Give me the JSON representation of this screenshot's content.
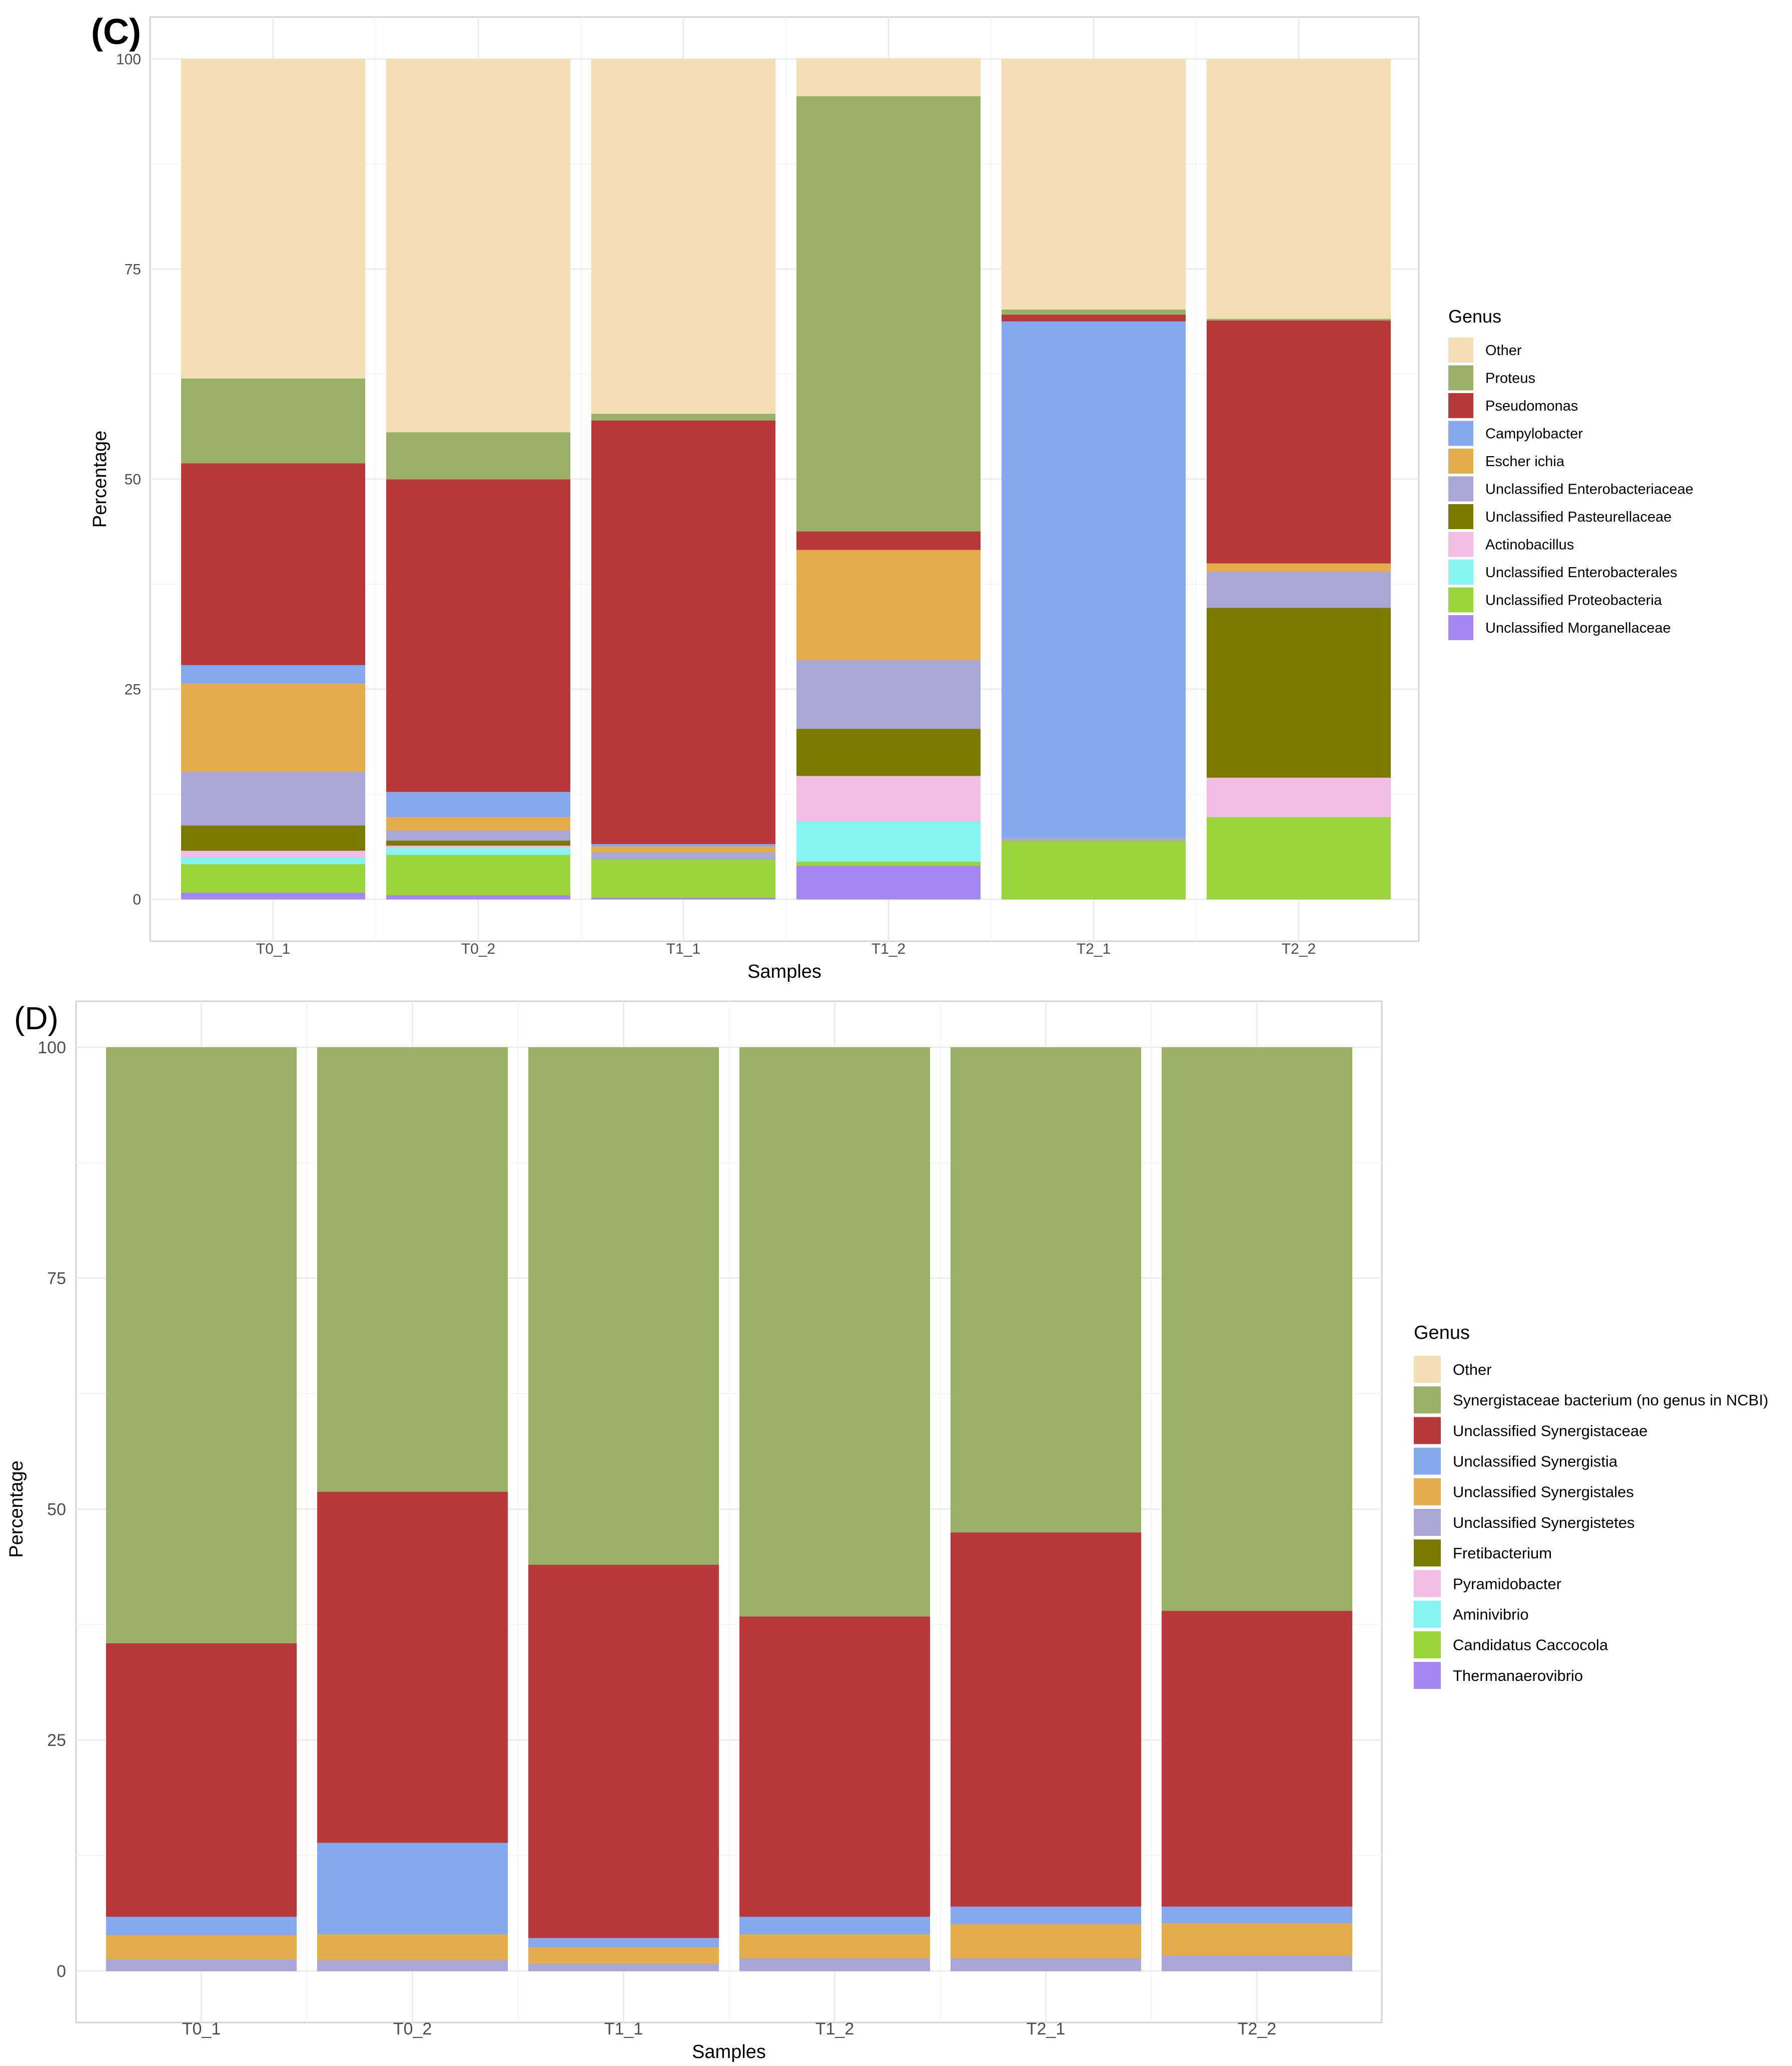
{
  "chart_data": [
    {
      "type": "bar",
      "stacked": true,
      "panel_label": "(C)",
      "xlabel": "Samples",
      "ylabel": "Percentage",
      "ylim": [
        0,
        100
      ],
      "yticks": [
        0,
        25,
        50,
        75,
        100
      ],
      "grid": true,
      "legend_title": "Genus",
      "legend_position": "right",
      "categories": [
        "T0_1",
        "T0_2",
        "T1_1",
        "T1_2",
        "T2_1",
        "T2_2"
      ],
      "series": [
        {
          "name": "Unclassified Morganellaceae",
          "color": "#a585f0",
          "values": [
            0.8,
            0.5,
            0.2,
            4.0,
            0.0,
            0.0
          ]
        },
        {
          "name": "Unclassified Proteobacteria",
          "color": "#99d43c",
          "values": [
            3.4,
            4.8,
            4.6,
            0.5,
            7.0,
            9.8
          ]
        },
        {
          "name": "Unclassified Enterobacterales",
          "color": "#84f4f2",
          "values": [
            0.8,
            0.8,
            0.0,
            4.8,
            0.0,
            0.0
          ]
        },
        {
          "name": "Actinobacillus",
          "color": "#f2bce5",
          "values": [
            0.8,
            0.3,
            0.0,
            5.4,
            0.0,
            4.7
          ]
        },
        {
          "name": "Unclassified Pasteurellaceae",
          "color": "#7a7a00",
          "values": [
            3.0,
            0.6,
            0.0,
            5.6,
            0.0,
            20.2
          ]
        },
        {
          "name": "Unclassified Enterobacteriaceae",
          "color": "#aaa6d6",
          "values": [
            6.4,
            1.2,
            0.8,
            8.2,
            0.4,
            4.3
          ]
        },
        {
          "name": "Escher ichia",
          "color": "#e3ac4d",
          "values": [
            10.5,
            1.6,
            0.7,
            13.1,
            0.0,
            1.0
          ]
        },
        {
          "name": "Campylobacter",
          "color": "#85a9ef",
          "values": [
            2.2,
            3.0,
            0.3,
            0.0,
            61.4,
            0.0
          ]
        },
        {
          "name": "Pseudomonas",
          "color": "#b93839",
          "values": [
            24.0,
            37.2,
            50.4,
            2.2,
            0.8,
            28.9
          ]
        },
        {
          "name": "Proteus",
          "color": "#9ab067",
          "values": [
            10.1,
            5.6,
            0.8,
            51.8,
            0.6,
            0.2
          ]
        },
        {
          "name": "Other",
          "color": "#f4deb4",
          "values": [
            38.0,
            44.4,
            42.2,
            4.5,
            29.8,
            30.9
          ]
        }
      ],
      "legend_order": [
        "Other",
        "Proteus",
        "Pseudomonas",
        "Campylobacter",
        "Escher ichia",
        "Unclassified Enterobacteriaceae",
        "Unclassified Pasteurellaceae",
        "Actinobacillus",
        "Unclassified Enterobacterales",
        "Unclassified Proteobacteria",
        "Unclassified Morganellaceae"
      ]
    },
    {
      "type": "bar",
      "stacked": true,
      "panel_label": "(D)",
      "xlabel": "Samples",
      "ylabel": "Percentage",
      "ylim": [
        0,
        100
      ],
      "yticks": [
        0,
        25,
        50,
        75,
        100
      ],
      "grid": true,
      "legend_title": "Genus",
      "legend_position": "right",
      "categories": [
        "T0_1",
        "T0_2",
        "T1_1",
        "T1_2",
        "T2_1",
        "T2_2"
      ],
      "series": [
        {
          "name": "Thermanaerovibrio",
          "color": "#a585f0",
          "values": [
            0.0,
            0.0,
            0.0,
            0.0,
            0.0,
            0.0
          ]
        },
        {
          "name": "Candidatus Caccocola",
          "color": "#99d43c",
          "values": [
            0.0,
            0.0,
            0.0,
            0.0,
            0.0,
            0.0
          ]
        },
        {
          "name": "Aminivibrio",
          "color": "#84f4f2",
          "values": [
            0.0,
            0.0,
            0.0,
            0.0,
            0.0,
            0.0
          ]
        },
        {
          "name": "Pyramidobacter",
          "color": "#f2bce5",
          "values": [
            0.0,
            0.0,
            0.0,
            0.0,
            0.0,
            0.0
          ]
        },
        {
          "name": "Fretibacterium",
          "color": "#7a7a00",
          "values": [
            0.0,
            0.0,
            0.0,
            0.0,
            0.0,
            0.0
          ]
        },
        {
          "name": "Unclassified Synergistetes",
          "color": "#aaa6d6",
          "values": [
            1.3,
            1.2,
            0.8,
            1.4,
            1.4,
            1.7
          ]
        },
        {
          "name": "Unclassified Synergistales",
          "color": "#e3ac4d",
          "values": [
            2.6,
            2.8,
            1.8,
            2.6,
            3.7,
            3.5
          ]
        },
        {
          "name": "Unclassified Synergistia",
          "color": "#85a9ef",
          "values": [
            2.0,
            9.9,
            1.0,
            1.9,
            1.9,
            1.8
          ]
        },
        {
          "name": "Unclassified Synergistaceae",
          "color": "#b93839",
          "values": [
            29.6,
            38.0,
            40.4,
            32.5,
            40.5,
            32.0
          ]
        },
        {
          "name": "Synergistaceae bacterium (no genus in NCBI)",
          "color": "#9ab067",
          "values": [
            64.5,
            48.1,
            56.0,
            61.6,
            52.5,
            61.0
          ]
        },
        {
          "name": "Other",
          "color": "#f4deb4",
          "values": [
            0.0,
            0.0,
            0.0,
            0.0,
            0.0,
            0.0
          ]
        }
      ],
      "legend_order": [
        "Other",
        "Synergistaceae bacterium (no genus in NCBI)",
        "Unclassified Synergistaceae",
        "Unclassified Synergistia",
        "Unclassified Synergistales",
        "Unclassified Synergistetes",
        "Fretibacterium",
        "Pyramidobacter",
        "Aminivibrio",
        "Candidatus Caccocola",
        "Thermanaerovibrio"
      ]
    }
  ]
}
